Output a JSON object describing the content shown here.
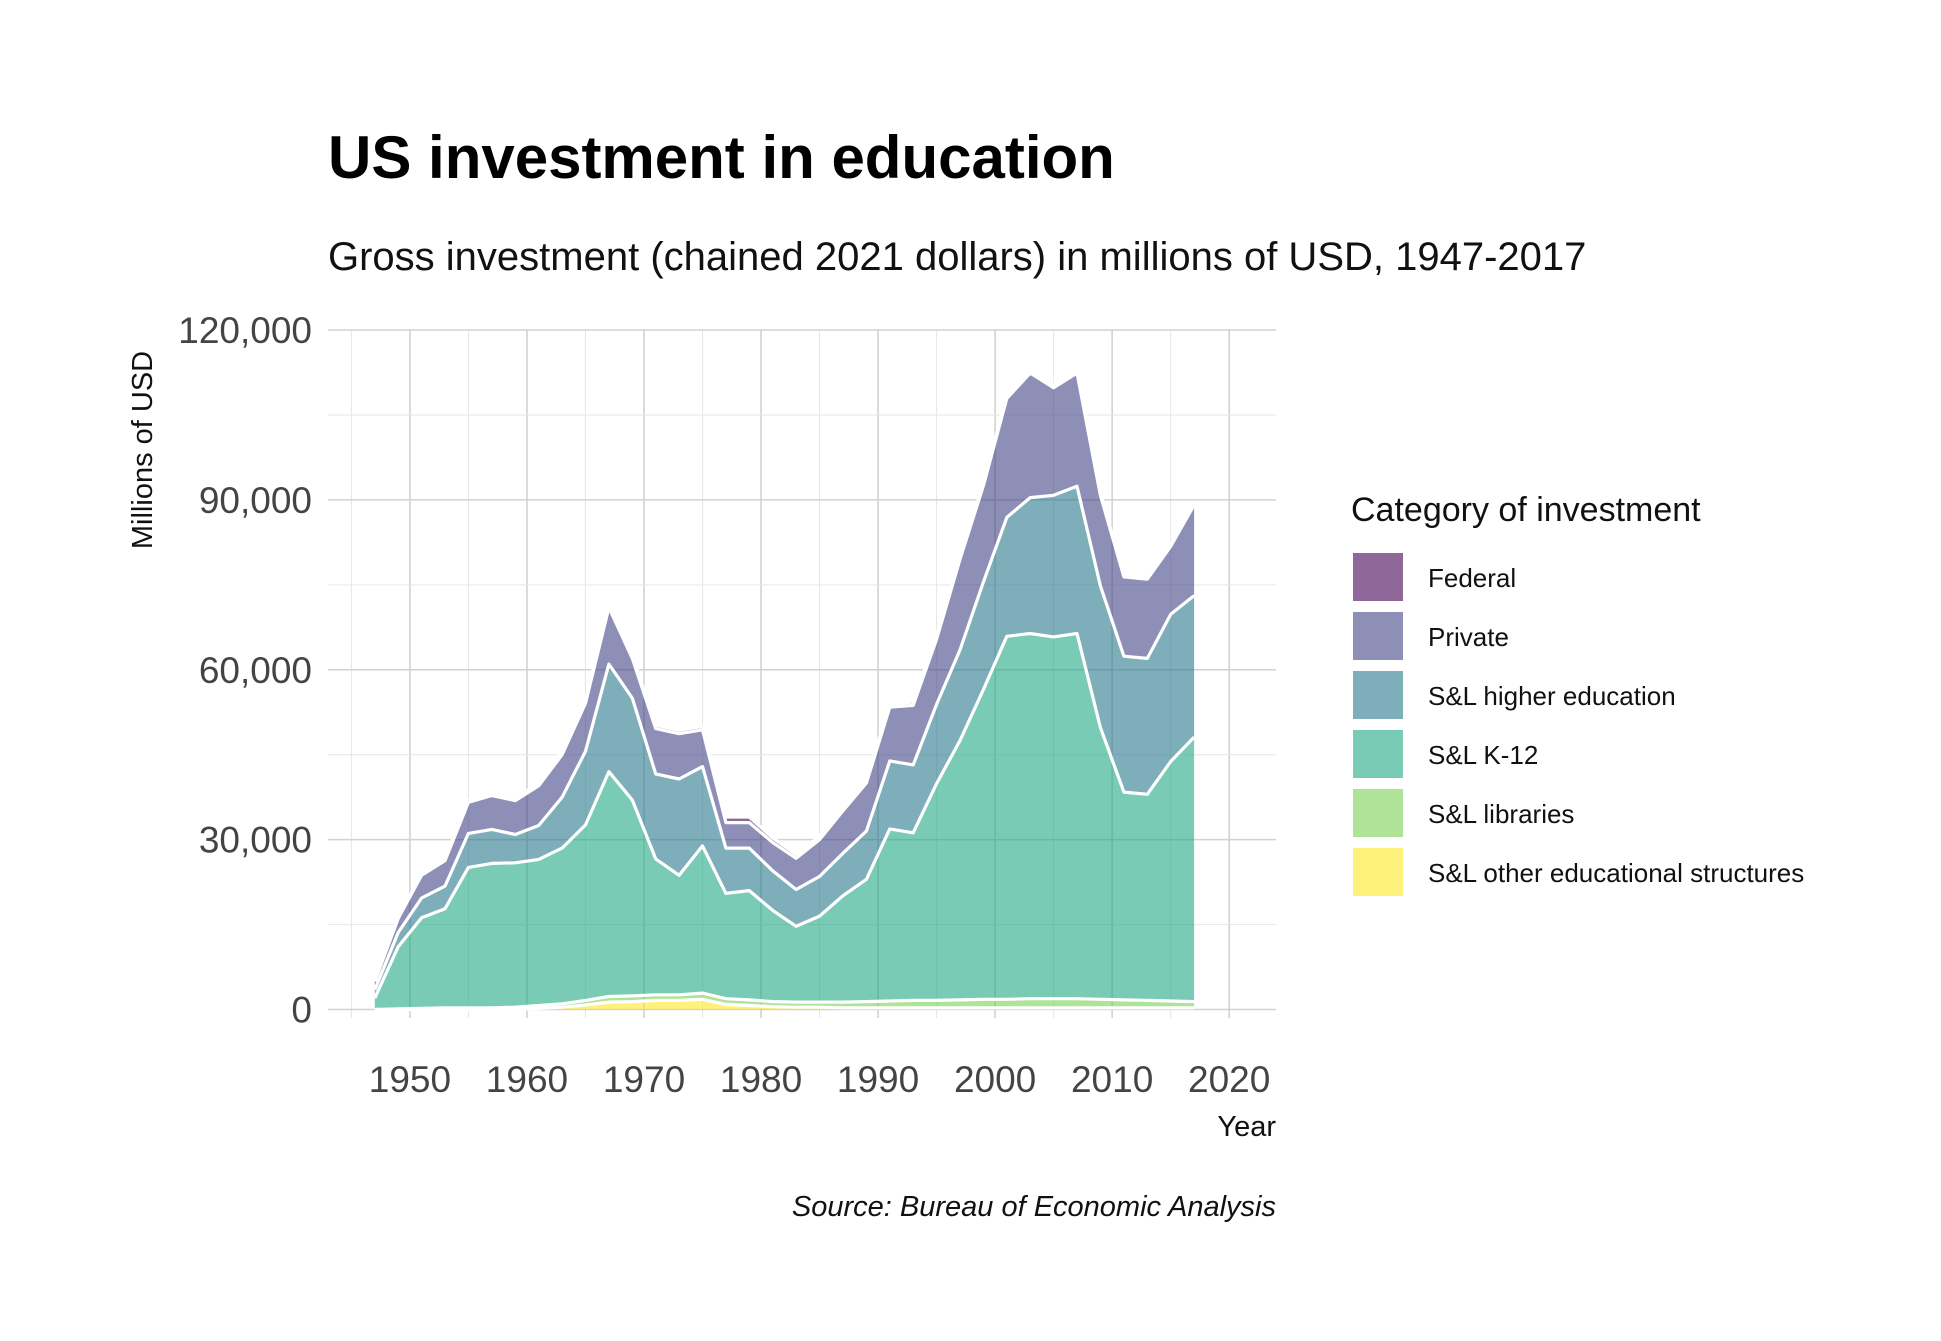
{
  "chart_data": {
    "type": "area",
    "stacked": true,
    "title": "US investment in education",
    "subtitle": "Gross investment (chained 2021 dollars) in millions of USD, 1947-2017",
    "xlabel": "Year",
    "ylabel": "Millions of USD",
    "caption": "Source:  Bureau of Economic Analysis",
    "legend_title": "Category of investment",
    "legend_position": "right",
    "grid": true,
    "xlim": [
      1943,
      2024
    ],
    "ylim": [
      -1500,
      120000
    ],
    "x_ticks": [
      1950,
      1960,
      1970,
      1980,
      1990,
      2000,
      2010,
      2020
    ],
    "x_tick_labels": [
      "1950",
      "1960",
      "1970",
      "1980",
      "1990",
      "2000",
      "2010",
      "2020"
    ],
    "y_ticks": [
      0,
      30000,
      60000,
      90000,
      120000
    ],
    "y_tick_labels": [
      "0",
      "30,000",
      "60,000",
      "90,000",
      "120,000"
    ],
    "x": [
      1947,
      1949,
      1951,
      1953,
      1955,
      1957,
      1959,
      1961,
      1963,
      1965,
      1967,
      1969,
      1971,
      1973,
      1975,
      1977,
      1979,
      1981,
      1983,
      1985,
      1987,
      1989,
      1991,
      1993,
      1995,
      1997,
      1999,
      2001,
      2003,
      2005,
      2007,
      2009,
      2011,
      2013,
      2015,
      2017
    ],
    "series": [
      {
        "name": "S&L other educational structures",
        "color": "#FDE725",
        "values": [
          0,
          0,
          0,
          0,
          0,
          0,
          0,
          200,
          400,
          800,
          1300,
          1400,
          1600,
          1600,
          1800,
          900,
          700,
          500,
          400,
          400,
          300,
          300,
          300,
          300,
          300,
          300,
          300,
          300,
          300,
          300,
          300,
          300,
          300,
          300,
          300,
          300
        ]
      },
      {
        "name": "S&L libraries",
        "color": "#7AD151",
        "values": [
          0,
          100,
          200,
          300,
          300,
          300,
          400,
          500,
          600,
          800,
          1000,
          1000,
          1000,
          1000,
          1100,
          1000,
          1000,
          900,
          900,
          900,
          1000,
          1100,
          1200,
          1300,
          1300,
          1400,
          1500,
          1500,
          1600,
          1600,
          1600,
          1500,
          1400,
          1300,
          1200,
          1100
        ]
      },
      {
        "name": "S&L K-12",
        "color": "#22A884",
        "values": [
          2000,
          11000,
          16000,
          17500,
          24800,
          25500,
          25500,
          25800,
          27500,
          31000,
          39700,
          34600,
          24000,
          21100,
          26000,
          18600,
          19300,
          16100,
          13400,
          15200,
          18800,
          21600,
          30400,
          29600,
          38300,
          45800,
          54700,
          64100,
          64500,
          63900,
          64500,
          48000,
          36700,
          36400,
          42300,
          46700
        ]
      },
      {
        "name": "S&L higher education",
        "color": "#2A788E",
        "values": [
          1500,
          2500,
          3500,
          4000,
          6000,
          6000,
          5000,
          6000,
          9000,
          13000,
          19000,
          18000,
          15000,
          17000,
          14000,
          8000,
          7500,
          7000,
          6500,
          7000,
          7500,
          8500,
          12000,
          12000,
          14000,
          16000,
          19000,
          21000,
          24000,
          25000,
          26000,
          25000,
          24000,
          24000,
          26000,
          25000
        ]
      },
      {
        "name": "Private",
        "color": "#414487",
        "values": [
          1500,
          2500,
          4000,
          4500,
          5500,
          6000,
          6000,
          7000,
          7500,
          8500,
          10000,
          7000,
          8000,
          8000,
          6500,
          4500,
          4500,
          5000,
          5500,
          6500,
          7500,
          8500,
          9500,
          10500,
          11500,
          16000,
          17000,
          21000,
          22000,
          19000,
          20000,
          16000,
          14000,
          14000,
          12000,
          16000
        ]
      },
      {
        "name": "Federal",
        "color": "#440154",
        "values": [
          0,
          0,
          200,
          300,
          400,
          400,
          400,
          500,
          500,
          500,
          700,
          500,
          600,
          600,
          600,
          1000,
          1000,
          800,
          700,
          600,
          500,
          500,
          500,
          600,
          600,
          500,
          400,
          500,
          400,
          400,
          400,
          400,
          300,
          300,
          300,
          300
        ]
      }
    ]
  }
}
